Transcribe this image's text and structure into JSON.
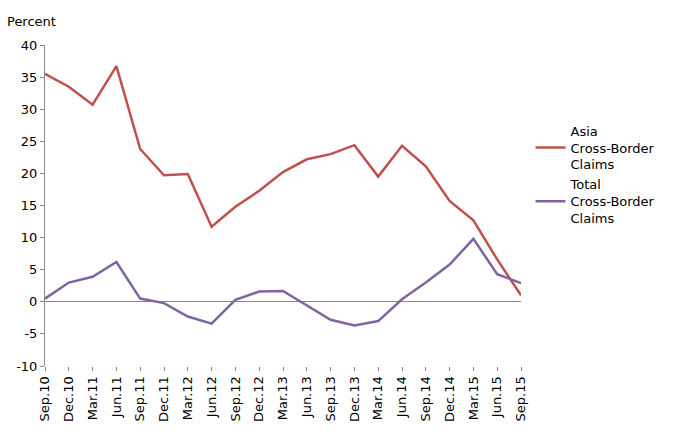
{
  "chart_data": {
    "type": "line",
    "ylabel": "Percent",
    "categories": [
      "Sep.10",
      "Dec.10",
      "Mar.11",
      "Jun.11",
      "Sep.11",
      "Dec.11",
      "Mar.12",
      "Jun.12",
      "Sep.12",
      "Dec.12",
      "Mar.13",
      "Jun.13",
      "Sep.13",
      "Dec.13",
      "Mar.14",
      "Jun.14",
      "Sep.14",
      "Dec.14",
      "Mar.15",
      "Jun.15",
      "Sep.15"
    ],
    "series": [
      {
        "name": "Asia Cross-Border Claims",
        "color": "#C0504D",
        "values": [
          35.5,
          33.5,
          30.7,
          36.7,
          23.8,
          19.7,
          19.9,
          11.7,
          14.8,
          17.3,
          20.2,
          22.2,
          23.0,
          24.4,
          19.5,
          24.3,
          21.1,
          15.7,
          12.7,
          6.6,
          1.0
        ]
      },
      {
        "name": "Total Cross-Border Claims",
        "color": "#8064A2",
        "values": [
          0.5,
          3.0,
          3.9,
          6.2,
          0.5,
          -0.2,
          -2.3,
          -3.4,
          0.3,
          1.6,
          1.7,
          -0.6,
          -2.8,
          -3.7,
          -3.0,
          0.4,
          3.0,
          5.8,
          9.8,
          4.3,
          2.9
        ]
      }
    ],
    "ylim": [
      -10,
      40
    ],
    "yticks": [
      -10,
      -5,
      0,
      5,
      10,
      15,
      20,
      25,
      30,
      35,
      40
    ],
    "grid": false,
    "legend": "right"
  }
}
